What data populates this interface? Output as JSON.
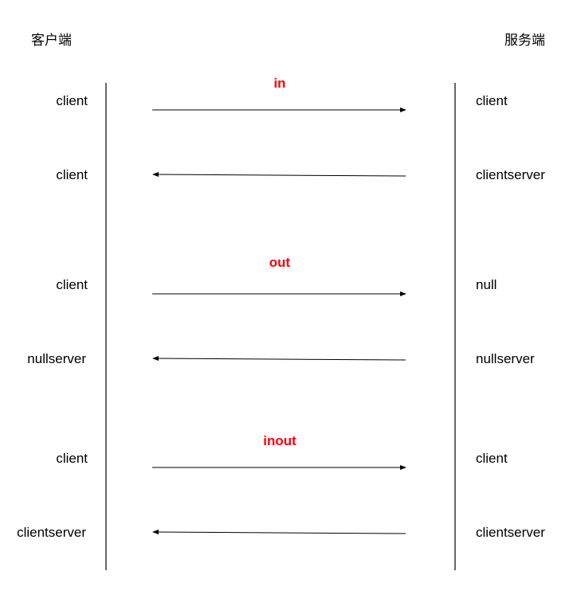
{
  "headers": {
    "client_side": "客户端",
    "server_side": "服务端"
  },
  "colors": {
    "section_label": "#ff0000",
    "line": "#000000"
  },
  "sections": [
    {
      "title": "in",
      "request": {
        "client": "client",
        "server": "client"
      },
      "response": {
        "client": "client",
        "server": "clientserver"
      }
    },
    {
      "title": "out",
      "request": {
        "client": "client",
        "server": "null"
      },
      "response": {
        "client": "nullserver",
        "server": "nullserver"
      }
    },
    {
      "title": "inout",
      "request": {
        "client": "client",
        "server": "client"
      },
      "response": {
        "client": "clientserver",
        "server": "clientserver"
      }
    }
  ]
}
